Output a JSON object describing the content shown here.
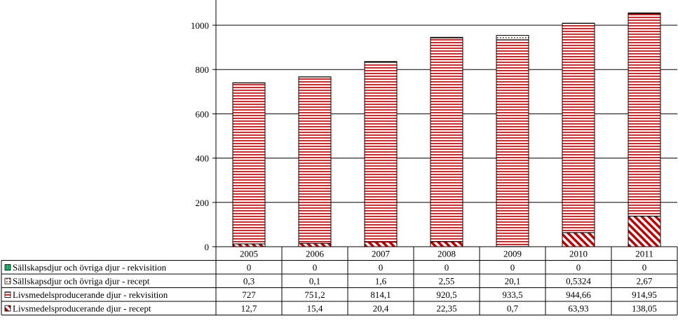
{
  "chart_data": {
    "type": "bar",
    "stacked": true,
    "title": "",
    "xlabel": "",
    "ylabel": "",
    "ylim": [
      0,
      1100
    ],
    "yticks": [
      0,
      200,
      400,
      600,
      800,
      1000
    ],
    "grid": "horizontal",
    "legend": "data-table-below",
    "categories": [
      "2005",
      "2006",
      "2007",
      "2008",
      "2009",
      "2010",
      "2011"
    ],
    "series": [
      {
        "name": "Sällskapsdjur och övriga djur - rekvisition",
        "values": [
          0,
          0,
          0,
          0,
          0,
          0,
          0
        ],
        "labels": [
          "0",
          "0",
          "0",
          "0",
          "0",
          "0",
          "0"
        ],
        "color": "#00a651",
        "pattern": "dotted-green"
      },
      {
        "name": "Sällskapsdjur och övriga djur - recept",
        "values": [
          0.3,
          0.1,
          1.6,
          2.55,
          20.1,
          0.5324,
          2.67
        ],
        "labels": [
          "0,3",
          "0,1",
          "1,6",
          "2,55",
          "20,1",
          "0,5324",
          "2,67"
        ],
        "color": "#c00000",
        "pattern": "dotted-red"
      },
      {
        "name": "Livsmedelsproducerande djur - rekvisition",
        "values": [
          727,
          751.2,
          814.1,
          920.5,
          933.5,
          944.66,
          914.95
        ],
        "labels": [
          "727",
          "751,2",
          "814,1",
          "920,5",
          "933,5",
          "944,66",
          "914,95"
        ],
        "color": "#c00000",
        "pattern": "horizontal-lines"
      },
      {
        "name": "Livsmedelsproducerande djur - recept",
        "values": [
          12.7,
          15.4,
          20.4,
          22.35,
          0.7,
          63.93,
          138.05
        ],
        "labels": [
          "12,7",
          "15,4",
          "20,4",
          "22,35",
          "0,7",
          "63,93",
          "138,05"
        ],
        "color": "#c00000",
        "pattern": "diagonal-hatch"
      }
    ],
    "tick_labels": [
      "0",
      "200",
      "400",
      "600",
      "800",
      "1000"
    ]
  }
}
